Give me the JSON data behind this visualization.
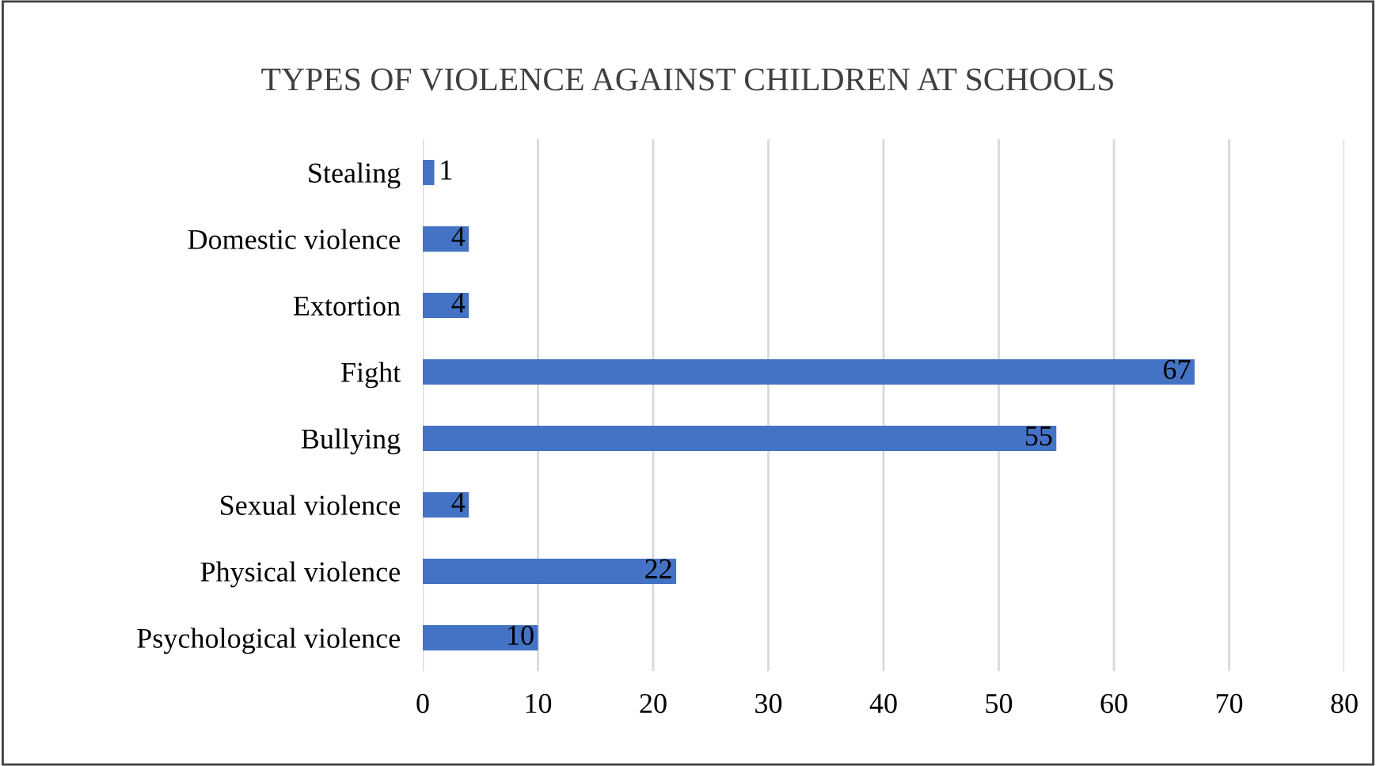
{
  "chart_data": {
    "type": "bar",
    "orientation": "horizontal",
    "title": "TYPES OF VIOLENCE AGAINST CHILDREN AT SCHOOLS",
    "categories": [
      "Stealing",
      "Domestic violence",
      "Extortion",
      "Fight",
      "Bullying",
      "Sexual violence",
      "Physical violence",
      "Psychological violence"
    ],
    "values": [
      1,
      4,
      4,
      67,
      55,
      4,
      22,
      10
    ],
    "color": "#4472c4",
    "xlim": [
      0,
      80
    ],
    "xticks": [
      0,
      10,
      20,
      30,
      40,
      50,
      60,
      70,
      80
    ],
    "grid": "x",
    "data_labels": true,
    "legend": false
  }
}
